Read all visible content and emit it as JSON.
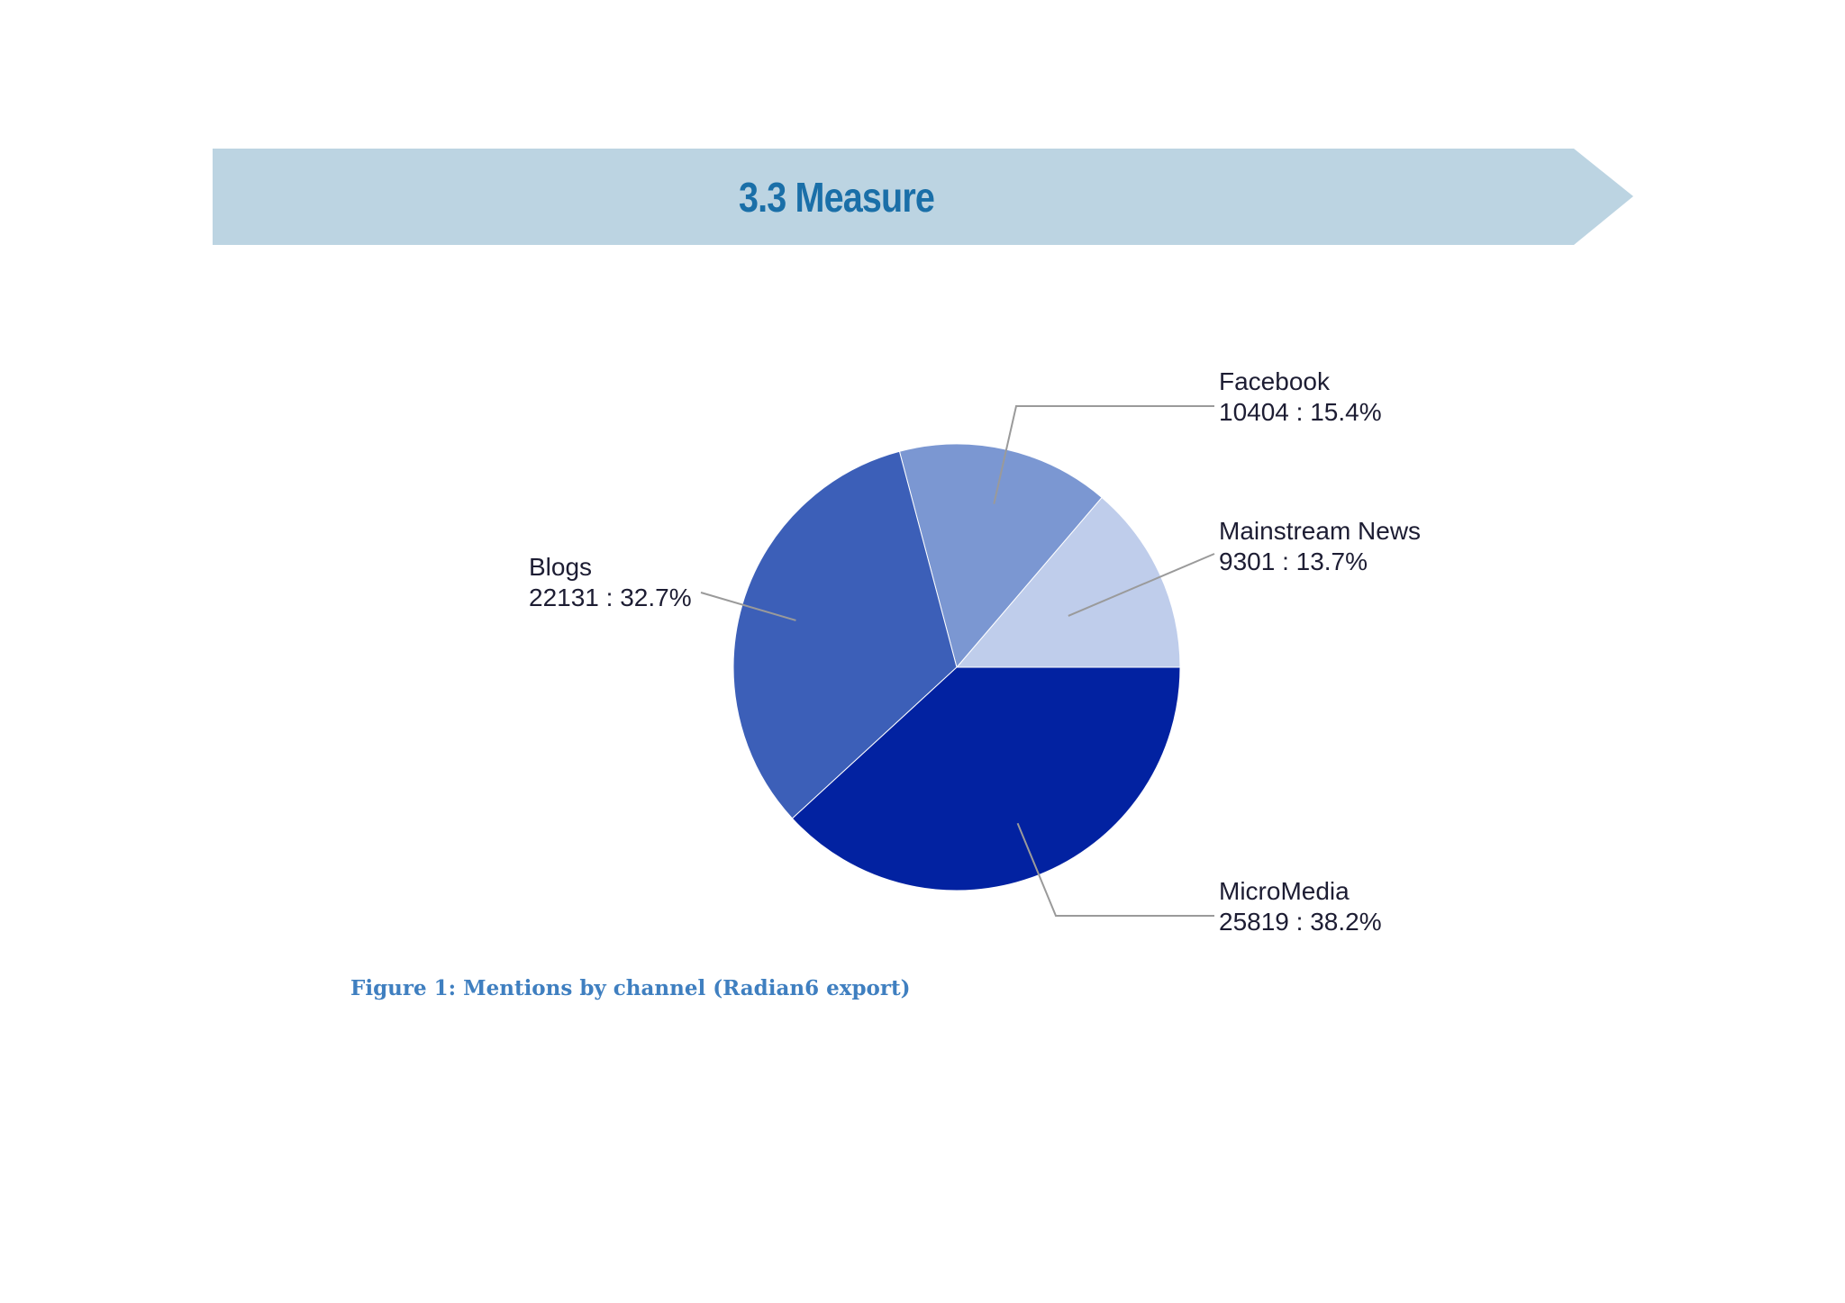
{
  "banner": {
    "title": "3.3 Measure",
    "color": "#bcd4e2"
  },
  "caption": "Figure 1: Mentions by channel (Radian6 export)",
  "chart_data": {
    "type": "pie",
    "title": "",
    "slices": [
      {
        "name": "Mainstream News",
        "value": 9301,
        "percent_label": "9301 : 13.7%",
        "color": "#bfcdeb"
      },
      {
        "name": "Facebook",
        "value": 10404,
        "percent_label": "10404 : 15.4%",
        "color": "#7b97d2"
      },
      {
        "name": "Blogs",
        "value": 22131,
        "percent_label": "22131 : 32.7%",
        "color": "#3c5fb8"
      },
      {
        "name": "MicroMedia",
        "value": 25819,
        "percent_label": "25819 : 38.2%",
        "color": "#0222a1"
      }
    ]
  }
}
